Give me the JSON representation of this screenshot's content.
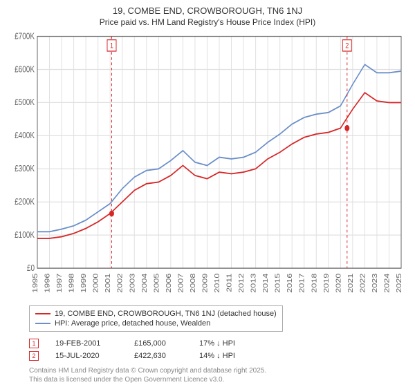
{
  "title": "19, COMBE END, CROWBOROUGH, TN6 1NJ",
  "subtitle": "Price paid vs. HM Land Registry's House Price Index (HPI)",
  "chart": {
    "type": "line",
    "background_color": "#ffffff",
    "grid_color": "#e0e0e0",
    "axis_color": "#666666",
    "tick_fontsize": 10,
    "y": {
      "label_prefix": "£",
      "label_suffix": "K",
      "min": 0,
      "max": 700,
      "tick_step": 100,
      "ticks": [
        0,
        100,
        200,
        300,
        400,
        500,
        600,
        700
      ]
    },
    "x": {
      "years": [
        1995,
        1996,
        1997,
        1998,
        1999,
        2000,
        2001,
        2002,
        2003,
        2004,
        2005,
        2006,
        2007,
        2008,
        2009,
        2010,
        2011,
        2012,
        2013,
        2014,
        2015,
        2016,
        2017,
        2018,
        2019,
        2020,
        2021,
        2022,
        2023,
        2024,
        2025
      ]
    },
    "series": [
      {
        "id": "property",
        "label": "19, COMBE END, CROWBOROUGH, TN6 1NJ (detached house)",
        "color": "#d62728",
        "line_width": 1.5,
        "values_by_year": {
          "1995": 90,
          "1996": 90,
          "1997": 95,
          "1998": 105,
          "1999": 120,
          "2000": 140,
          "2001": 165,
          "2002": 200,
          "2003": 235,
          "2004": 255,
          "2005": 260,
          "2006": 280,
          "2007": 310,
          "2008": 280,
          "2009": 270,
          "2010": 290,
          "2011": 285,
          "2012": 290,
          "2013": 300,
          "2014": 330,
          "2015": 350,
          "2016": 375,
          "2017": 395,
          "2018": 405,
          "2019": 410,
          "2020": 423,
          "2021": 480,
          "2022": 530,
          "2023": 505,
          "2024": 500,
          "2025": 500
        }
      },
      {
        "id": "hpi",
        "label": "HPI: Average price, detached house, Wealden",
        "color": "#6b8fc9",
        "line_width": 1.5,
        "values_by_year": {
          "1995": 110,
          "1996": 110,
          "1997": 118,
          "1998": 128,
          "1999": 145,
          "2000": 170,
          "2001": 195,
          "2002": 240,
          "2003": 275,
          "2004": 295,
          "2005": 300,
          "2006": 325,
          "2007": 355,
          "2008": 320,
          "2009": 310,
          "2010": 335,
          "2011": 330,
          "2012": 335,
          "2013": 350,
          "2014": 380,
          "2015": 405,
          "2016": 435,
          "2017": 455,
          "2018": 465,
          "2019": 470,
          "2020": 490,
          "2021": 555,
          "2022": 615,
          "2023": 590,
          "2024": 590,
          "2025": 595
        }
      }
    ],
    "transaction_markers": [
      {
        "badge": "1",
        "year": 2001.13,
        "value": 165
      },
      {
        "badge": "2",
        "year": 2020.54,
        "value": 423
      }
    ],
    "marker_style": {
      "dot_color": "#d62728",
      "dot_radius": 3.5,
      "line_color": "#d62728",
      "line_dash": "3,3",
      "badge_border": "#d62728",
      "badge_text_color": "#d62728",
      "badge_bg": "#ffffff",
      "badge_fontsize": 9
    }
  },
  "legend": {
    "border_color": "#aaaaaa",
    "fontsize": 11
  },
  "transactions_table": {
    "fontsize": 11,
    "arrow_down": "↓",
    "rows": [
      {
        "badge": "1",
        "date": "19-FEB-2001",
        "price": "£165,000",
        "diff": "17% ↓ HPI"
      },
      {
        "badge": "2",
        "date": "15-JUL-2020",
        "price": "£422,630",
        "diff": "14% ↓ HPI"
      }
    ]
  },
  "footnote": {
    "line1": "Contains HM Land Registry data © Crown copyright and database right 2025.",
    "line2": "This data is licensed under the Open Government Licence v3.0.",
    "color": "#888888",
    "fontsize": 10
  }
}
